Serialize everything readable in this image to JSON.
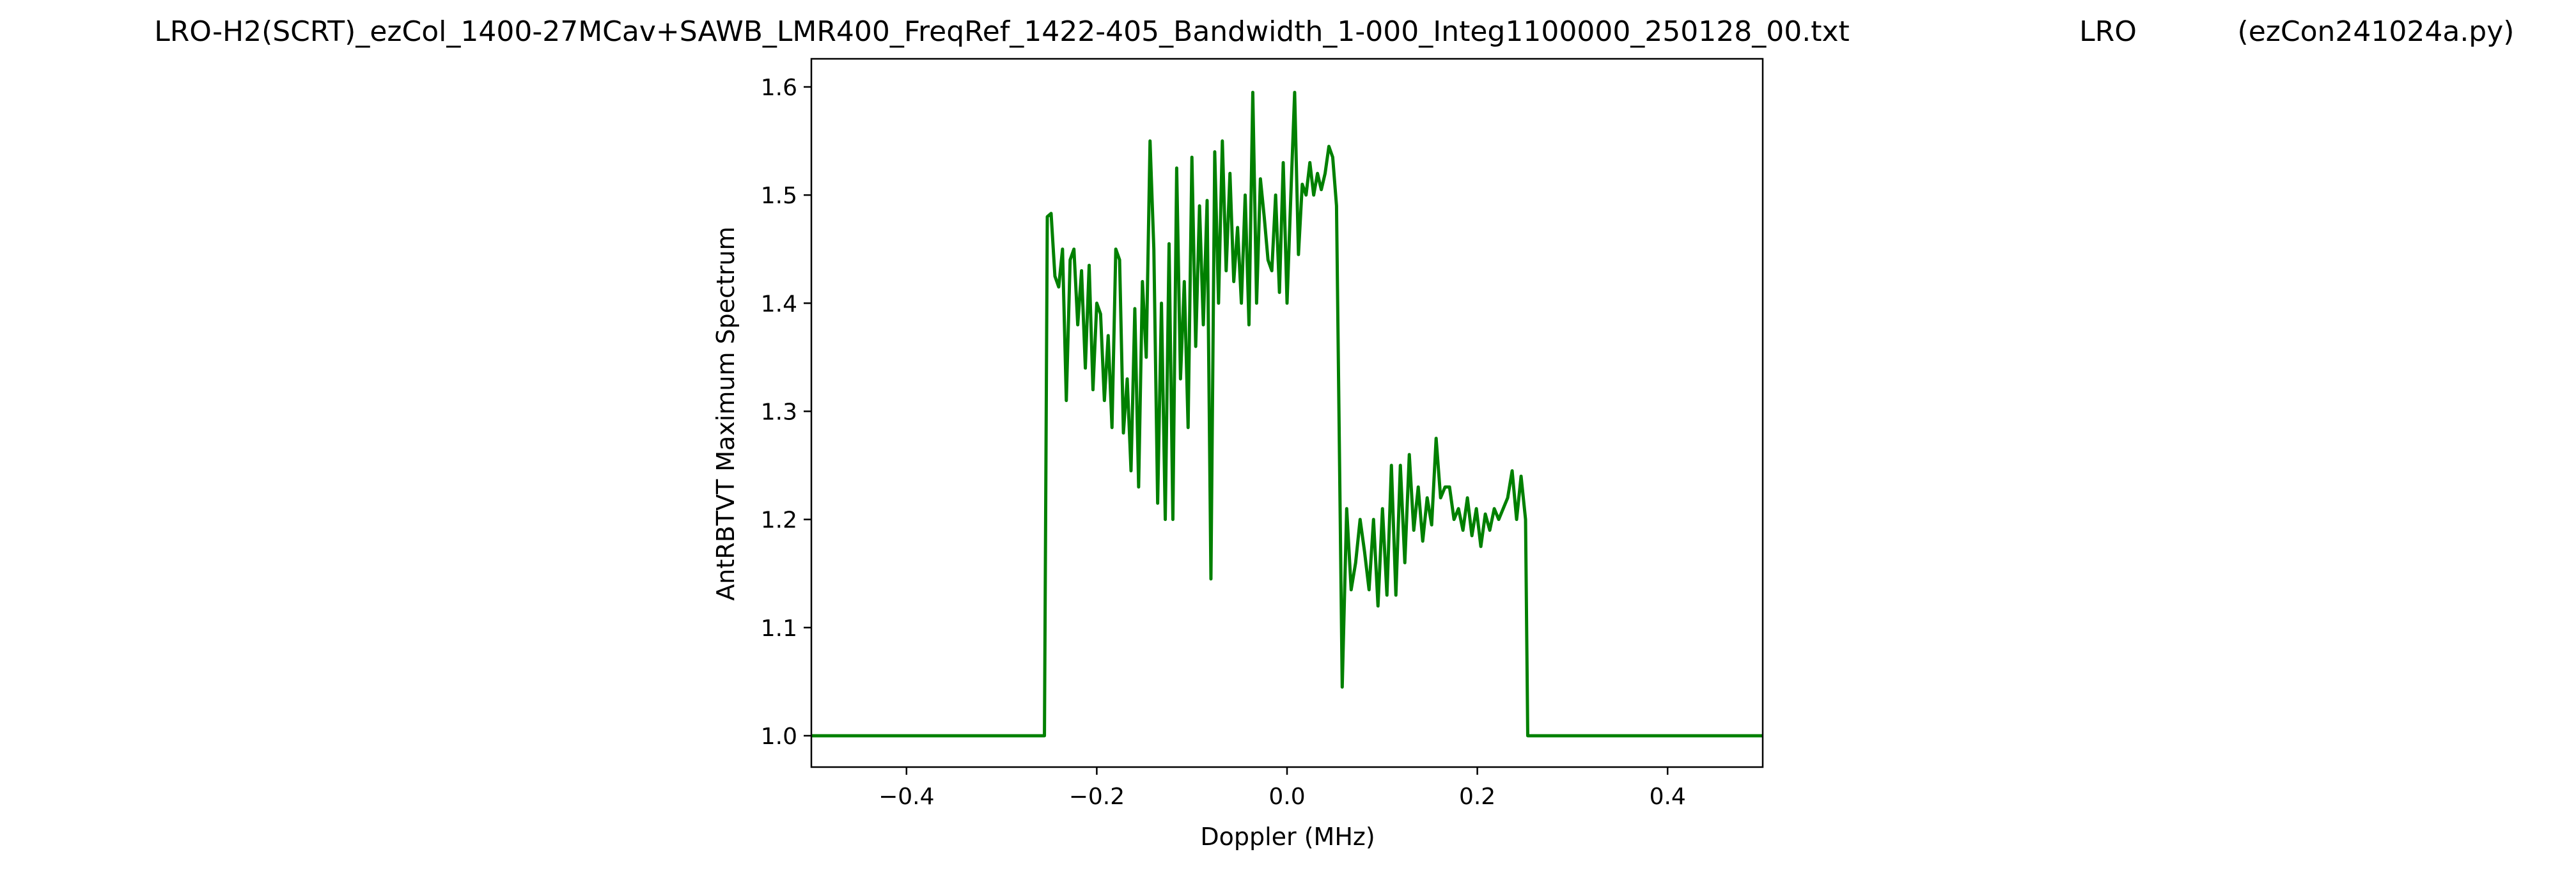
{
  "chart_data": {
    "type": "line",
    "titles": [
      "LRO-H2(SCRT)_ezCol_1400-27MCav+SAWB_LMR400_FreqRef_1422-405_Bandwidth_1-000_Integ1100000_250128_00.txt",
      "LRO",
      "(ezCon241024a.py)"
    ],
    "xlabel": "Doppler (MHz)",
    "ylabel": "AntRBTVT Maximum Spectrum",
    "color": "#008000",
    "xlim": [
      -0.5,
      0.5
    ],
    "ylim": [
      0.971,
      1.626
    ],
    "xticks": [
      {
        "value": -0.4,
        "label": "−0.4"
      },
      {
        "value": -0.2,
        "label": "−0.2"
      },
      {
        "value": 0,
        "label": "0.0"
      },
      0.2,
      0.4
    ],
    "yticks": [
      {
        "value": 1,
        "label": "1.0"
      },
      1.1,
      1.2,
      1.3,
      1.4,
      1.5,
      1.6
    ],
    "x": [
      -0.5,
      -0.255,
      -0.252,
      -0.248,
      -0.244,
      -0.24,
      -0.236,
      -0.232,
      -0.228,
      -0.224,
      -0.22,
      -0.216,
      -0.212,
      -0.208,
      -0.204,
      -0.2,
      -0.196,
      -0.192,
      -0.188,
      -0.184,
      -0.18,
      -0.176,
      -0.172,
      -0.168,
      -0.164,
      -0.16,
      -0.156,
      -0.152,
      -0.148,
      -0.144,
      -0.14,
      -0.136,
      -0.132,
      -0.128,
      -0.124,
      -0.12,
      -0.116,
      -0.112,
      -0.108,
      -0.104,
      -0.1,
      -0.096,
      -0.092,
      -0.088,
      -0.084,
      -0.08,
      -0.076,
      -0.072,
      -0.068,
      -0.064,
      -0.06,
      -0.056,
      -0.052,
      -0.048,
      -0.044,
      -0.04,
      -0.036,
      -0.032,
      -0.028,
      -0.024,
      -0.02,
      -0.016,
      -0.012,
      -0.008,
      -0.004,
      0,
      0.004,
      0.008,
      0.012,
      0.016,
      0.02,
      0.024,
      0.028,
      0.032,
      0.036,
      0.04,
      0.044,
      0.048,
      0.052,
      0.058,
      0.0627,
      0.0674,
      0.0721,
      0.0768,
      0.0815,
      0.0862,
      0.0909,
      0.0956,
      0.1003,
      0.105,
      0.1097,
      0.1144,
      0.1191,
      0.1238,
      0.1285,
      0.1332,
      0.1379,
      0.1426,
      0.1473,
      0.152,
      0.1567,
      0.1614,
      0.1661,
      0.1708,
      0.1755,
      0.1802,
      0.1849,
      0.1896,
      0.1943,
      0.199,
      0.2037,
      0.2084,
      0.2131,
      0.2178,
      0.2225,
      0.2272,
      0.2319,
      0.2366,
      0.2413,
      0.246,
      0.2507,
      0.253,
      0.5
    ],
    "values": [
      1.0,
      1.0,
      1.48,
      1.483,
      1.425,
      1.415,
      1.45,
      1.31,
      1.44,
      1.45,
      1.38,
      1.43,
      1.34,
      1.435,
      1.32,
      1.4,
      1.39,
      1.31,
      1.37,
      1.285,
      1.45,
      1.44,
      1.28,
      1.33,
      1.245,
      1.395,
      1.23,
      1.42,
      1.35,
      1.55,
      1.45,
      1.215,
      1.4,
      1.2,
      1.455,
      1.2,
      1.525,
      1.33,
      1.42,
      1.285,
      1.535,
      1.36,
      1.49,
      1.38,
      1.495,
      1.145,
      1.54,
      1.4,
      1.55,
      1.43,
      1.52,
      1.42,
      1.47,
      1.4,
      1.5,
      1.38,
      1.595,
      1.4,
      1.515,
      1.48,
      1.44,
      1.43,
      1.5,
      1.41,
      1.53,
      1.4,
      1.5,
      1.595,
      1.445,
      1.51,
      1.5,
      1.53,
      1.5,
      1.52,
      1.505,
      1.52,
      1.545,
      1.535,
      1.49,
      1.045,
      1.21,
      1.135,
      1.16,
      1.2,
      1.17,
      1.135,
      1.2,
      1.12,
      1.21,
      1.13,
      1.25,
      1.13,
      1.25,
      1.16,
      1.26,
      1.19,
      1.23,
      1.18,
      1.22,
      1.195,
      1.275,
      1.22,
      1.23,
      1.23,
      1.2,
      1.21,
      1.19,
      1.22,
      1.185,
      1.21,
      1.175,
      1.205,
      1.19,
      1.21,
      1.2,
      1.21,
      1.22,
      1.245,
      1.2,
      1.24,
      1.2,
      1.0,
      1.0
    ]
  }
}
